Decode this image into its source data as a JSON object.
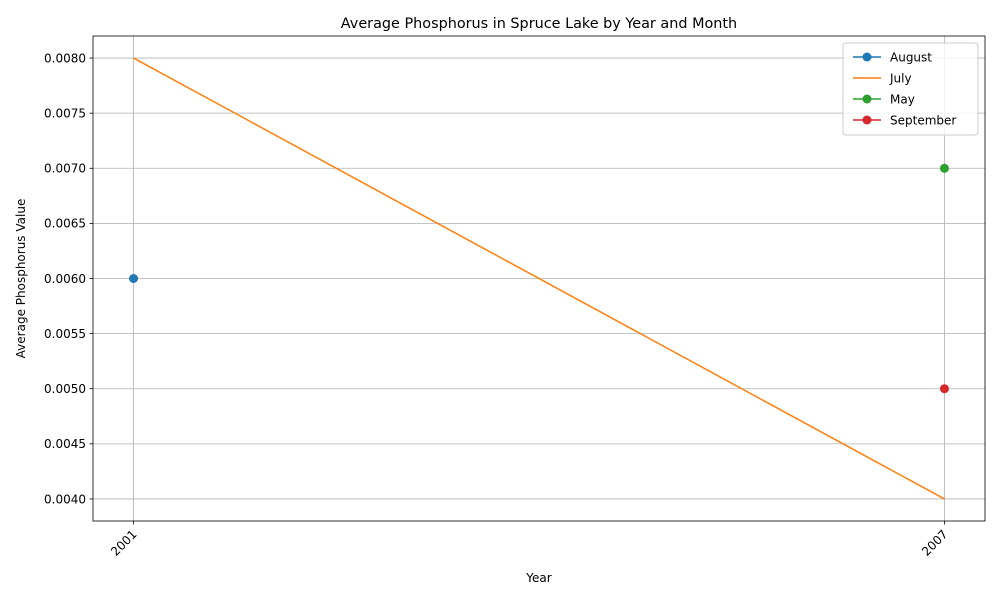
{
  "chart_data": {
    "type": "line",
    "title": "Average Phosphorus in Spruce Lake by Year and Month",
    "xlabel": "Year",
    "ylabel": "Average Phosphorus Value",
    "x_ticks": [
      "2001",
      "2007"
    ],
    "xlim": [
      2000.7,
      2007.3
    ],
    "ylim": [
      0.0038,
      0.0082
    ],
    "y_ticks": [
      0.004,
      0.0045,
      0.005,
      0.0055,
      0.006,
      0.0065,
      0.007,
      0.0075,
      0.008
    ],
    "y_tick_labels": [
      "0.0040",
      "0.0045",
      "0.0050",
      "0.0055",
      "0.0060",
      "0.0065",
      "0.0070",
      "0.0075",
      "0.0080"
    ],
    "grid": true,
    "legend_position": "top-right",
    "series": [
      {
        "name": "August",
        "color": "#1f77b4",
        "markers": true,
        "points": [
          {
            "x": 2001,
            "y": 0.006
          }
        ]
      },
      {
        "name": "July",
        "color": "#ff7f0e",
        "markers": false,
        "points": [
          {
            "x": 2001,
            "y": 0.008
          },
          {
            "x": 2007,
            "y": 0.004
          }
        ]
      },
      {
        "name": "May",
        "color": "#2ca02c",
        "markers": true,
        "points": [
          {
            "x": 2007,
            "y": 0.007
          }
        ]
      },
      {
        "name": "September",
        "color": "#d62728",
        "markers": true,
        "points": [
          {
            "x": 2007,
            "y": 0.005
          }
        ]
      }
    ]
  }
}
